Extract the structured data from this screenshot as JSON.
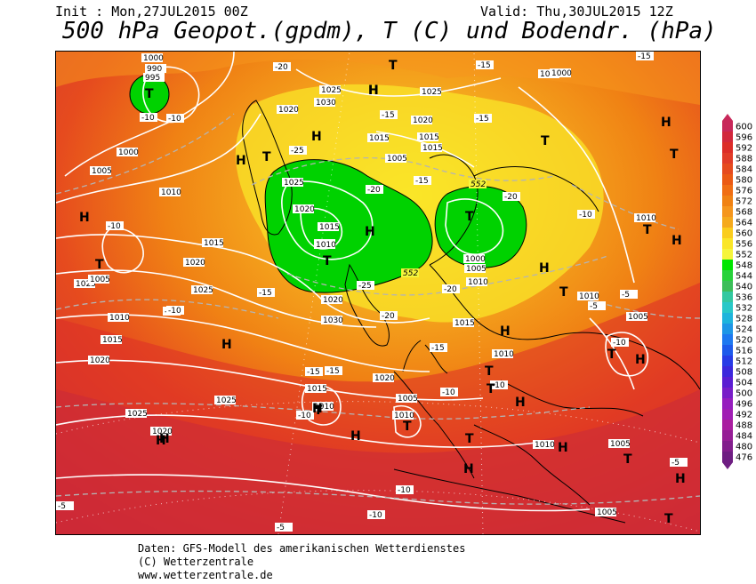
{
  "header": {
    "init": "Init : Mon,27JUL2015 00Z",
    "valid": "Valid: Thu,30JUL2015 12Z",
    "title": "500 hPa Geopot.(gpdm), T (C) und Bodendr. (hPa)"
  },
  "footer": {
    "line1": "Daten: GFS-Modell des amerikanischen Wetterdienstes",
    "line2": "(C) Wetterzentrale",
    "line3": "www.wetterzentrale.de"
  },
  "colorbar": {
    "levels": [
      "600",
      "596",
      "592",
      "588",
      "584",
      "580",
      "576",
      "572",
      "568",
      "564",
      "560",
      "556",
      "552",
      "548",
      "544",
      "540",
      "536",
      "532",
      "528",
      "524",
      "520",
      "516",
      "512",
      "508",
      "504",
      "500",
      "496",
      "492",
      "488",
      "484",
      "480",
      "476"
    ],
    "colors": [
      "#c8285a",
      "#d2283c",
      "#dc2d28",
      "#e13c28",
      "#e64b1e",
      "#eb5a14",
      "#f06e14",
      "#f08214",
      "#f5961e",
      "#f5aa1e",
      "#facd1e",
      "#fae628",
      "#f5f53c",
      "#00e600",
      "#28d23c",
      "#3cbe5a",
      "#32c8a0",
      "#28c8c8",
      "#1eb4dc",
      "#1e96e6",
      "#1e78f0",
      "#1e5aeb",
      "#283ce6",
      "#3c28dc",
      "#5a1ed2",
      "#781ec8",
      "#961ebe",
      "#a01eb4",
      "#aa1ea0",
      "#961e96",
      "#821e8c",
      "#6e1e82"
    ]
  },
  "map": {
    "pressure_labels": [
      "1000",
      "995",
      "990",
      "1000",
      "1005",
      "1010",
      "1015",
      "1020",
      "1025",
      "1030",
      "1025",
      "1020",
      "1015",
      "1010",
      "1005",
      "1000",
      "1025",
      "1020",
      "1015",
      "1010",
      "1015",
      "1020",
      "1025",
      "1030",
      "1020",
      "1015",
      "1010",
      "1005",
      "1000",
      "1025",
      "1020",
      "1015",
      "1010",
      "1005",
      "1010",
      "1015",
      "1020",
      "1025",
      "1010",
      "1005",
      "1010",
      "1025",
      "1020",
      "1015",
      "1010",
      "1005",
      "1000",
      "1010",
      "1005",
      "1005",
      "1010"
    ],
    "temperature_labels": [
      "-10",
      "-10",
      "-10",
      "-15",
      "-10",
      "-20",
      "-20",
      "-20",
      "-25",
      "-15",
      "-15",
      "-15",
      "-20",
      "-25",
      "-20",
      "-15",
      "-10",
      "-15",
      "-15",
      "-10",
      "-10",
      "-5",
      "-5",
      "-10",
      "-15",
      "-10",
      "-5",
      "-10",
      "-10",
      "-5",
      "-5",
      "-15",
      "-10"
    ],
    "geopotential_labels": [
      "552",
      "552"
    ],
    "highs": [
      "H",
      "H",
      "H",
      "H",
      "H",
      "H",
      "H",
      "H",
      "H",
      "H",
      "H",
      "H",
      "H",
      "H",
      "H",
      "H",
      "H",
      "H",
      "H",
      "H"
    ],
    "lows": [
      "T",
      "T",
      "T",
      "T",
      "T",
      "T",
      "T",
      "T",
      "T",
      "T",
      "T",
      "T",
      "T",
      "T",
      "T",
      "T",
      "T",
      "T"
    ]
  }
}
